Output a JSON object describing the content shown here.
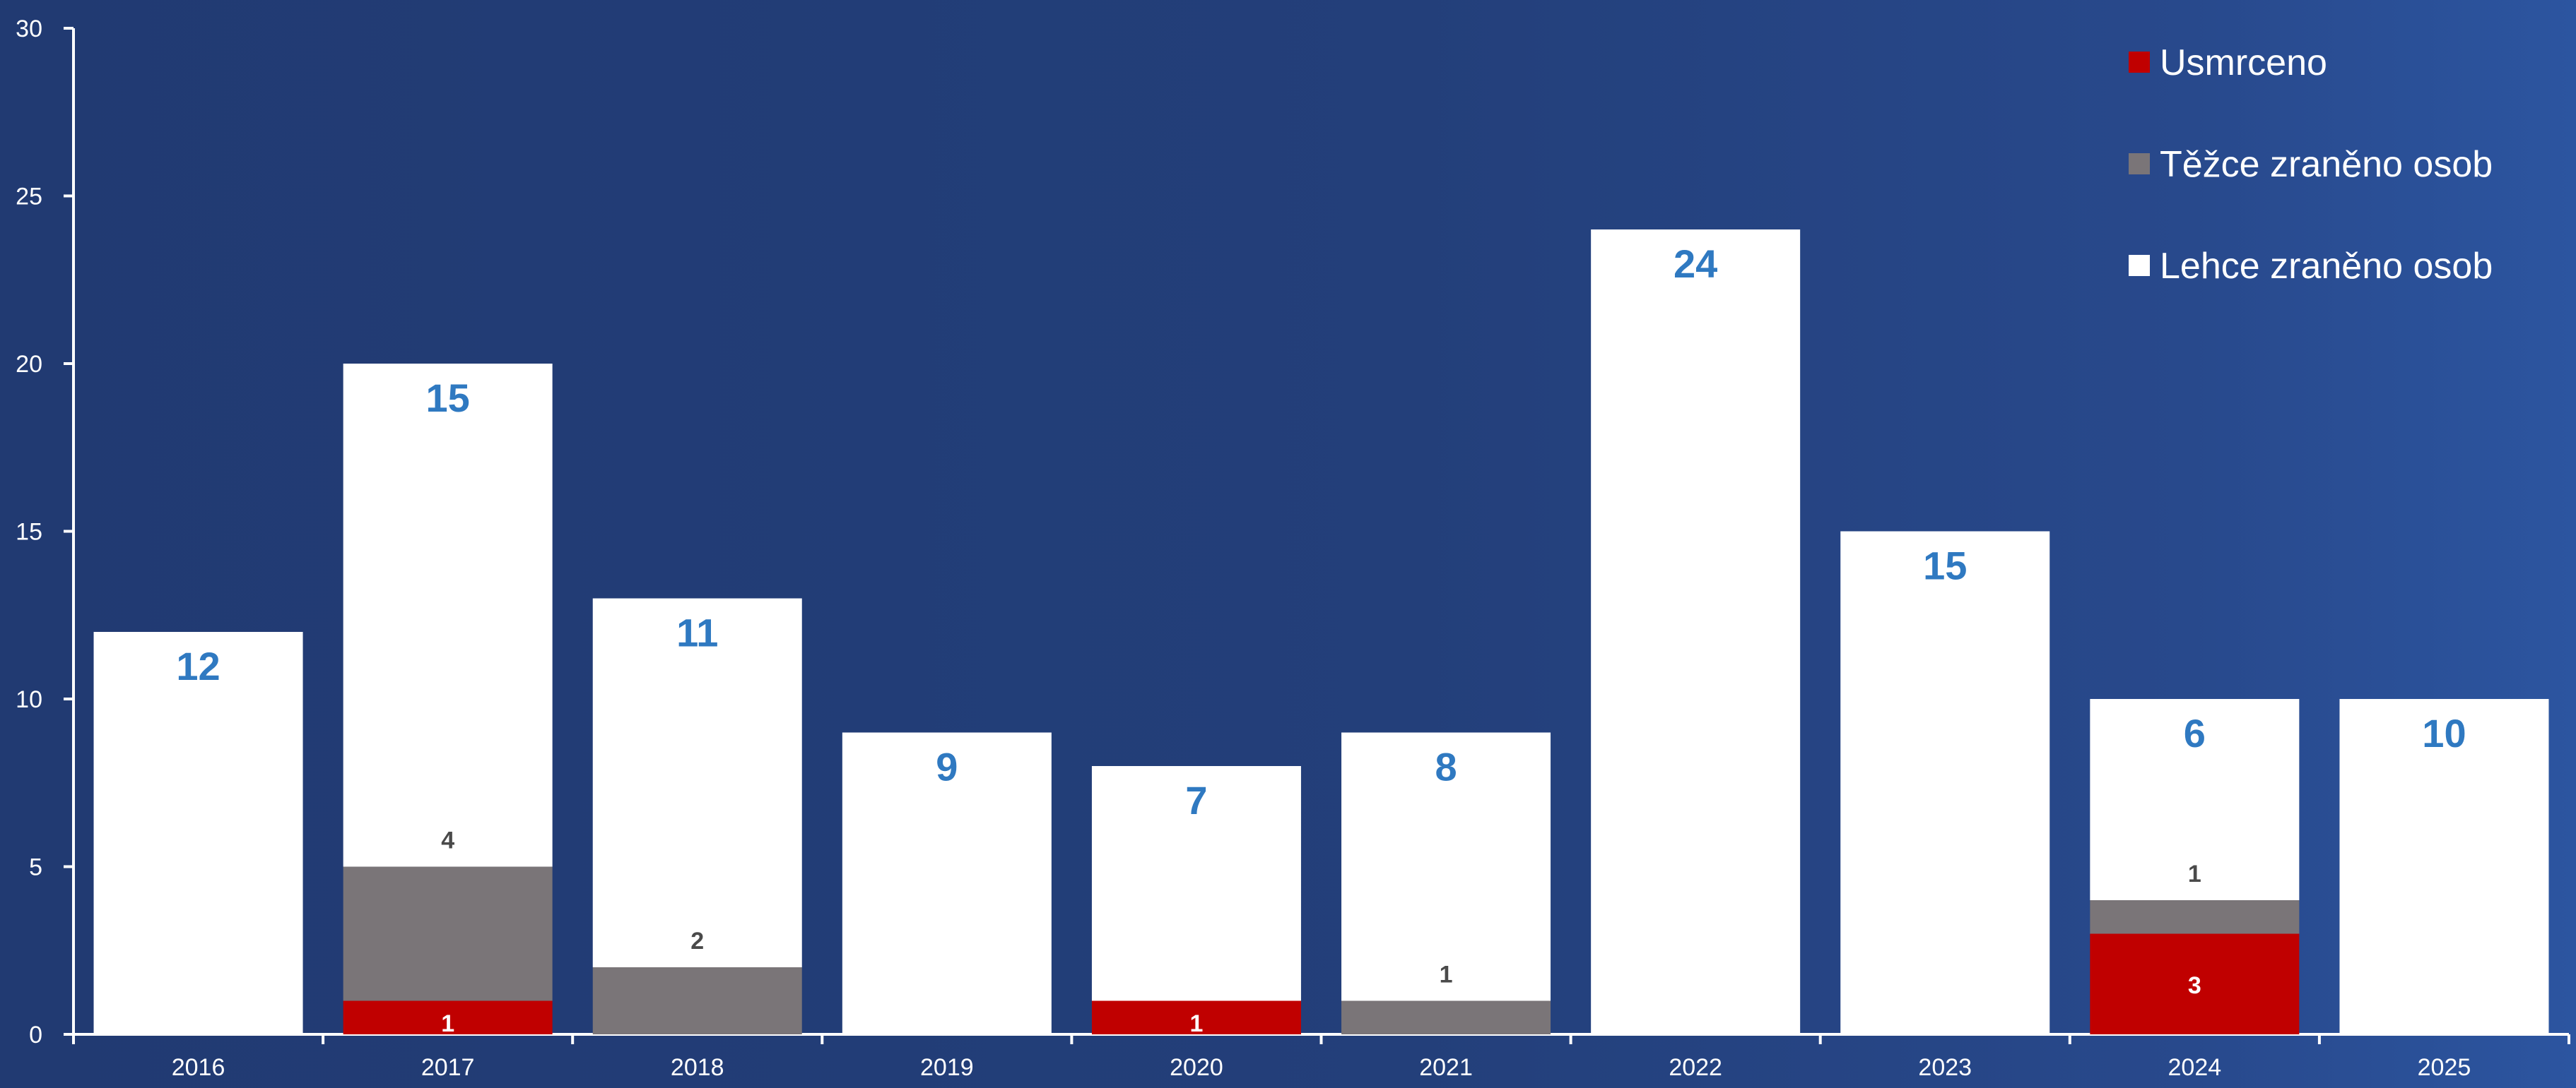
{
  "chart_data": {
    "type": "bar",
    "stacked": true,
    "categories": [
      "2016",
      "2017",
      "2018",
      "2019",
      "2020",
      "2021",
      "2022",
      "2023",
      "2024",
      "2025"
    ],
    "series": [
      {
        "name": "Usmrceno",
        "color": "#c00000",
        "values": [
          0,
          1,
          0,
          0,
          1,
          0,
          0,
          0,
          3,
          0
        ]
      },
      {
        "name": "Těžce zraněno osob",
        "color": "#7a7578",
        "values": [
          0,
          4,
          2,
          0,
          0,
          1,
          0,
          0,
          1,
          0
        ]
      },
      {
        "name": "Lehce zraněno osob",
        "color": "#ffffff",
        "values": [
          12,
          15,
          11,
          9,
          7,
          8,
          24,
          15,
          6,
          10
        ]
      }
    ],
    "segment_labels": {
      "Usmrceno": [
        "",
        "1",
        "",
        "",
        "1",
        "",
        "",
        "",
        "3",
        ""
      ],
      "Těžce zraněno osob": [
        "",
        "4",
        "2",
        "",
        "",
        "1",
        "",
        "",
        "1",
        ""
      ],
      "Lehce zraněno osob": [
        "12",
        "15",
        "11",
        "9",
        "7",
        "8",
        "24",
        "15",
        "6",
        "10"
      ]
    },
    "yticks": [
      "0",
      "5",
      "10",
      "15",
      "20",
      "25",
      "30"
    ],
    "ylim": [
      0,
      30
    ],
    "legend_position": "top-right",
    "grid": false
  }
}
